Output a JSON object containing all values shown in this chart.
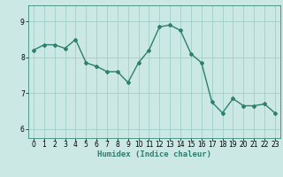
{
  "x": [
    0,
    1,
    2,
    3,
    4,
    5,
    6,
    7,
    8,
    9,
    10,
    11,
    12,
    13,
    14,
    15,
    16,
    17,
    18,
    19,
    20,
    21,
    22,
    23
  ],
  "y": [
    8.2,
    8.35,
    8.35,
    8.25,
    8.5,
    7.85,
    7.75,
    7.6,
    7.6,
    7.3,
    7.85,
    8.2,
    8.85,
    8.9,
    8.75,
    8.1,
    7.85,
    6.75,
    6.45,
    6.85,
    6.65,
    6.65,
    6.7,
    6.45
  ],
  "line_color": "#2d7f6e",
  "marker": "D",
  "marker_size": 2.0,
  "bg_color": "#cce8e4",
  "grid_color": "#a0cfc9",
  "xlabel": "Humidex (Indice chaleur)",
  "ylim": [
    5.75,
    9.45
  ],
  "xlim": [
    -0.5,
    23.5
  ],
  "yticks": [
    6,
    7,
    8,
    9
  ],
  "xticks": [
    0,
    1,
    2,
    3,
    4,
    5,
    6,
    7,
    8,
    9,
    10,
    11,
    12,
    13,
    14,
    15,
    16,
    17,
    18,
    19,
    20,
    21,
    22,
    23
  ],
  "label_fontsize": 6.5,
  "tick_fontsize": 5.5,
  "line_width": 1.0
}
